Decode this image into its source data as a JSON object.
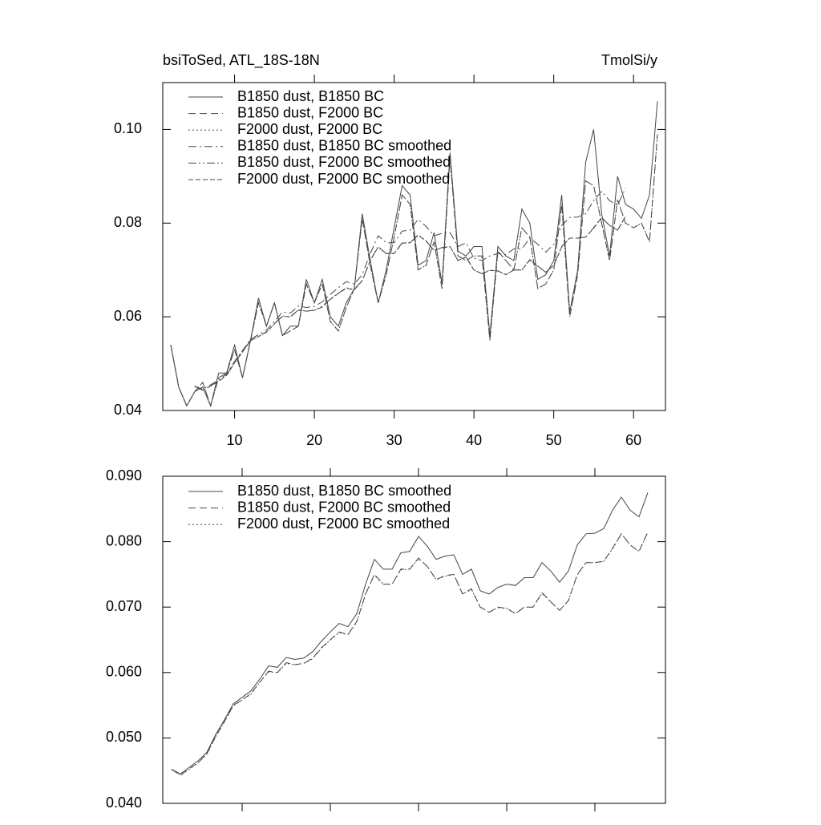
{
  "chart_data": [
    {
      "type": "line",
      "title": "bsiToSed, ATL_18S-18N",
      "units_label": "TmolSi/y",
      "x": [
        2,
        3,
        4,
        5,
        6,
        7,
        8,
        9,
        10,
        11,
        12,
        13,
        14,
        15,
        16,
        17,
        18,
        19,
        20,
        21,
        22,
        23,
        24,
        25,
        26,
        27,
        28,
        29,
        30,
        31,
        32,
        33,
        34,
        35,
        36,
        37,
        38,
        39,
        40,
        41,
        42,
        43,
        44,
        45,
        46,
        47,
        48,
        49,
        50,
        51,
        52,
        53,
        54,
        55,
        56,
        57,
        58,
        59,
        60,
        61,
        62,
        63
      ],
      "xlim": [
        1,
        64
      ],
      "xticks": [
        10,
        20,
        30,
        40,
        50,
        60
      ],
      "ylim": [
        0.04,
        0.11
      ],
      "yticks": [
        0.04,
        0.06,
        0.08,
        {
          "value": 0.1,
          "label": "0.10"
        }
      ],
      "series": [
        {
          "name": "B1850 dust, B1850 BC",
          "color": "#444",
          "dash": "none",
          "values": [
            0.054,
            0.045,
            0.041,
            0.044,
            0.045,
            0.041,
            0.048,
            0.048,
            0.054,
            0.047,
            0.055,
            0.064,
            0.058,
            0.063,
            0.056,
            0.058,
            0.058,
            0.068,
            0.063,
            0.068,
            0.06,
            0.058,
            0.063,
            0.066,
            0.082,
            0.072,
            0.063,
            0.07,
            0.079,
            0.088,
            0.086,
            0.071,
            0.072,
            0.078,
            0.067,
            0.095,
            0.074,
            0.073,
            0.075,
            0.075,
            0.056,
            0.075,
            0.073,
            0.072,
            0.083,
            0.08,
            0.068,
            0.069,
            0.072,
            0.086,
            0.061,
            0.07,
            0.093,
            0.1,
            0.082,
            0.073,
            0.09,
            0.084,
            0.083,
            0.081,
            0.086,
            0.106
          ]
        },
        {
          "name": "B1850 dust, F2000 BC",
          "color": "#444",
          "dash": "9,5",
          "values": [
            0.054,
            0.045,
            0.041,
            0.044,
            0.046,
            0.041,
            0.047,
            0.048,
            0.053,
            0.047,
            0.055,
            0.063,
            0.058,
            0.063,
            0.056,
            0.057,
            0.058,
            0.067,
            0.063,
            0.067,
            0.059,
            0.057,
            0.062,
            0.066,
            0.081,
            0.071,
            0.063,
            0.069,
            0.077,
            0.086,
            0.084,
            0.07,
            0.071,
            0.076,
            0.066,
            0.094,
            0.073,
            0.072,
            0.073,
            0.073,
            0.055,
            0.074,
            0.072,
            0.07,
            0.079,
            0.077,
            0.066,
            0.067,
            0.07,
            0.084,
            0.06,
            0.069,
            0.089,
            0.088,
            0.08,
            0.072,
            0.085,
            0.08,
            0.079,
            0.08,
            0.076,
            0.099
          ]
        },
        {
          "name": "F2000 dust, F2000 BC",
          "color": "#444",
          "dash": "2,3",
          "values": [
            0.054,
            0.045,
            0.041,
            0.044,
            0.046,
            0.041,
            0.047,
            0.048,
            0.053,
            0.047,
            0.055,
            0.063,
            0.058,
            0.063,
            0.056,
            0.057,
            0.058,
            0.067,
            0.063,
            0.067,
            0.059,
            0.057,
            0.062,
            0.066,
            0.081,
            0.071,
            0.063,
            0.069,
            0.077,
            0.086,
            0.084,
            0.07,
            0.071,
            0.076,
            0.066,
            0.094,
            0.073,
            0.072,
            0.073,
            0.073,
            0.055,
            0.074,
            0.072,
            0.07,
            0.079,
            0.077,
            0.066,
            0.067,
            0.07,
            0.084,
            0.06,
            0.069,
            0.089,
            0.088,
            0.08,
            0.072,
            0.085,
            0.08,
            0.079,
            0.08,
            0.076,
            0.099
          ]
        },
        {
          "name": "B1850 dust, B1850 BC smoothed",
          "color": "#444",
          "dash": "10,4,2,4",
          "values": [
            null,
            null,
            null,
            0.0452,
            0.0445,
            0.0455,
            0.0465,
            0.0478,
            0.0505,
            0.0528,
            0.0552,
            0.0562,
            0.0572,
            0.059,
            0.061,
            0.0608,
            0.0623,
            0.062,
            0.0622,
            0.0632,
            0.0648,
            0.0662,
            0.0675,
            0.067,
            0.069,
            0.0735,
            0.0773,
            0.0758,
            0.0758,
            0.0783,
            0.0785,
            0.0808,
            0.0793,
            0.0773,
            0.0778,
            0.078,
            0.075,
            0.0758,
            0.0725,
            0.072,
            0.073,
            0.0735,
            0.0733,
            0.0745,
            0.0745,
            0.0768,
            0.0755,
            0.0738,
            0.0755,
            0.0795,
            0.0812,
            0.0813,
            0.082,
            0.0848,
            0.0868,
            0.0848,
            0.0838,
            0.0875,
            null,
            null,
            null,
            null
          ]
        },
        {
          "name": "B1850 dust, F2000 BC smoothed",
          "color": "#444",
          "dash": "10,3,2,3,2,3",
          "values": [
            null,
            null,
            null,
            0.0452,
            0.0443,
            0.0453,
            0.0462,
            0.0476,
            0.0502,
            0.0525,
            0.055,
            0.0558,
            0.0568,
            0.0585,
            0.0602,
            0.06,
            0.0615,
            0.0612,
            0.0614,
            0.0622,
            0.0638,
            0.065,
            0.0662,
            0.0658,
            0.0678,
            0.072,
            0.075,
            0.0735,
            0.0735,
            0.0758,
            0.0758,
            0.0775,
            0.0762,
            0.0742,
            0.0748,
            0.075,
            0.072,
            0.0728,
            0.07,
            0.0692,
            0.07,
            0.0698,
            0.069,
            0.07,
            0.07,
            0.0722,
            0.0708,
            0.0695,
            0.071,
            0.075,
            0.0768,
            0.0768,
            0.077,
            0.079,
            0.0812,
            0.0795,
            0.0785,
            0.0815,
            null,
            null,
            null,
            null
          ]
        },
        {
          "name": "F2000 dust, F2000 BC smoothed",
          "color": "#444",
          "dash": "6,3",
          "values": [
            null,
            null,
            null,
            0.0452,
            0.0443,
            0.0452,
            0.0462,
            0.0475,
            0.0502,
            0.0525,
            0.0549,
            0.0558,
            0.0567,
            0.0585,
            0.0601,
            0.06,
            0.0614,
            0.0612,
            0.0614,
            0.0621,
            0.0637,
            0.065,
            0.0661,
            0.0658,
            0.0677,
            0.072,
            0.0749,
            0.0735,
            0.0735,
            0.0757,
            0.0758,
            0.0774,
            0.0762,
            0.0742,
            0.0747,
            0.075,
            0.072,
            0.0727,
            0.07,
            0.0692,
            0.0699,
            0.0698,
            0.069,
            0.07,
            0.07,
            0.0721,
            0.0708,
            0.0695,
            0.071,
            0.0749,
            0.0768,
            0.0768,
            0.077,
            0.0789,
            0.0812,
            0.0795,
            0.0785,
            0.0814,
            null,
            null,
            null,
            null
          ]
        }
      ]
    },
    {
      "type": "line",
      "x": [
        2,
        3,
        4,
        5,
        6,
        7,
        8,
        9,
        10,
        11,
        12,
        13,
        14,
        15,
        16,
        17,
        18,
        19,
        20,
        21,
        22,
        23,
        24,
        25,
        26,
        27,
        28,
        29,
        30,
        31,
        32,
        33,
        34,
        35,
        36,
        37,
        38,
        39,
        40,
        41,
        42,
        43,
        44,
        45,
        46,
        47,
        48,
        49,
        50,
        51,
        52,
        53,
        54,
        55,
        56
      ],
      "xlim": [
        1,
        58
      ],
      "xticks": [
        10,
        20,
        30,
        40,
        50
      ],
      "xtick_labels": false,
      "ylim": [
        0.04,
        0.09
      ],
      "yticks": [
        {
          "value": 0.04,
          "label": "0.040"
        },
        {
          "value": 0.05,
          "label": "0.050"
        },
        {
          "value": 0.06,
          "label": "0.060"
        },
        {
          "value": 0.07,
          "label": "0.070"
        },
        {
          "value": 0.08,
          "label": "0.080"
        },
        {
          "value": 0.09,
          "label": "0.090"
        }
      ],
      "series": [
        {
          "name": "B1850 dust, B1850 BC smoothed",
          "color": "#444",
          "dash": "none",
          "values": [
            0.0452,
            0.0445,
            0.0455,
            0.0465,
            0.0478,
            0.0505,
            0.0528,
            0.0552,
            0.0562,
            0.0572,
            0.059,
            0.061,
            0.0608,
            0.0623,
            0.062,
            0.0622,
            0.0632,
            0.0648,
            0.0662,
            0.0675,
            0.067,
            0.069,
            0.0735,
            0.0773,
            0.0758,
            0.0758,
            0.0783,
            0.0785,
            0.0808,
            0.0793,
            0.0773,
            0.0778,
            0.078,
            0.075,
            0.0758,
            0.0725,
            0.072,
            0.073,
            0.0735,
            0.0733,
            0.0745,
            0.0745,
            0.0768,
            0.0755,
            0.0738,
            0.0755,
            0.0795,
            0.0812,
            0.0813,
            0.082,
            0.0848,
            0.0868,
            0.0848,
            0.0838,
            0.0875
          ]
        },
        {
          "name": "B1850 dust, F2000 BC smoothed",
          "color": "#444",
          "dash": "9,5",
          "values": [
            0.0452,
            0.0443,
            0.0453,
            0.0462,
            0.0476,
            0.0502,
            0.0525,
            0.055,
            0.0558,
            0.0568,
            0.0585,
            0.0602,
            0.06,
            0.0615,
            0.0612,
            0.0614,
            0.0622,
            0.0638,
            0.065,
            0.0662,
            0.0658,
            0.0678,
            0.072,
            0.075,
            0.0735,
            0.0735,
            0.0758,
            0.0758,
            0.0775,
            0.0762,
            0.0742,
            0.0748,
            0.075,
            0.072,
            0.0728,
            0.07,
            0.0692,
            0.07,
            0.0698,
            0.069,
            0.07,
            0.07,
            0.0722,
            0.0708,
            0.0695,
            0.071,
            0.075,
            0.0768,
            0.0768,
            0.077,
            0.079,
            0.0812,
            0.0795,
            0.0785,
            0.0815
          ]
        },
        {
          "name": "F2000 dust, F2000 BC smoothed",
          "color": "#444",
          "dash": "2,3",
          "values": [
            0.0452,
            0.0443,
            0.0452,
            0.0462,
            0.0475,
            0.0502,
            0.0525,
            0.0549,
            0.0558,
            0.0567,
            0.0585,
            0.0601,
            0.06,
            0.0614,
            0.0612,
            0.0614,
            0.0621,
            0.0637,
            0.065,
            0.0661,
            0.0658,
            0.0677,
            0.072,
            0.0749,
            0.0735,
            0.0735,
            0.0757,
            0.0758,
            0.0774,
            0.0762,
            0.0742,
            0.0747,
            0.075,
            0.072,
            0.0727,
            0.07,
            0.0692,
            0.0699,
            0.0698,
            0.069,
            0.07,
            0.07,
            0.0721,
            0.0708,
            0.0695,
            0.071,
            0.0749,
            0.0768,
            0.0768,
            0.077,
            0.0789,
            0.0812,
            0.0795,
            0.0785,
            0.0814
          ]
        }
      ]
    }
  ]
}
